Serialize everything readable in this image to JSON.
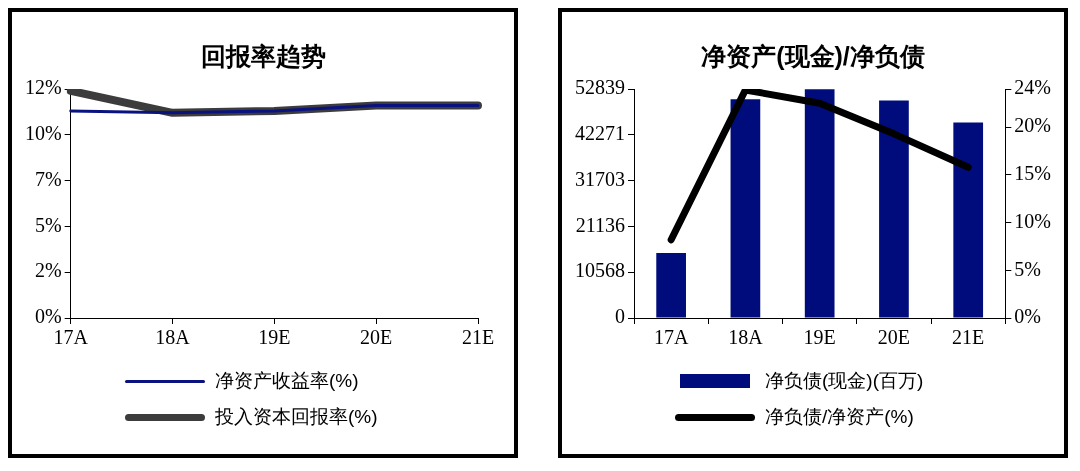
{
  "chart_data": [
    {
      "type": "line",
      "title": "回报率趋势",
      "categories": [
        "17A",
        "18A",
        "19E",
        "20E",
        "21E"
      ],
      "series": [
        {
          "name": "净资产收益率(%)",
          "color": "#0a1280",
          "values": [
            11.3,
            11.2,
            11.3,
            11.6,
            11.6
          ]
        },
        {
          "name": "投入资本回报率(%)",
          "color": "#3c3c3c",
          "values": [
            12.4,
            11.2,
            11.3,
            11.6,
            11.6
          ]
        }
      ],
      "ylim": [
        0,
        12.5
      ],
      "yticks": [
        {
          "value": 0,
          "label": "0%"
        },
        {
          "value": 2.5,
          "label": "2%"
        },
        {
          "value": 5,
          "label": "5%"
        },
        {
          "value": 7.5,
          "label": "7%"
        },
        {
          "value": 10,
          "label": "10%"
        },
        {
          "value": 12.5,
          "label": "12%"
        }
      ],
      "legend": "bottom"
    },
    {
      "type": "bar",
      "title": "净资产(现金)/净负债",
      "categories": [
        "17A",
        "18A",
        "19E",
        "20E",
        "21E"
      ],
      "series": [
        {
          "name": "净负债(现金)(百万)",
          "color": "#000c7c",
          "values": [
            15000,
            50500,
            52800,
            50200,
            45100
          ]
        },
        {
          "name": "净负债/净资产(%)",
          "color": "#000000",
          "type": "line",
          "axis": "y2",
          "values": [
            8.2,
            23.9,
            22.5,
            19.3,
            15.8
          ]
        }
      ],
      "ylim": [
        0,
        52839
      ],
      "yticks": [
        0,
        10568,
        21136,
        31703,
        42271,
        52839
      ],
      "y2lim": [
        0,
        24
      ],
      "y2ticks": [
        {
          "value": 0,
          "label": "0%"
        },
        {
          "value": 5,
          "label": "5%"
        },
        {
          "value": 10,
          "label": "10%"
        },
        {
          "value": 15,
          "label": "15%"
        },
        {
          "value": 20,
          "label": "20%"
        },
        {
          "value": 24,
          "label": "24%"
        }
      ],
      "legend": "bottom"
    }
  ]
}
